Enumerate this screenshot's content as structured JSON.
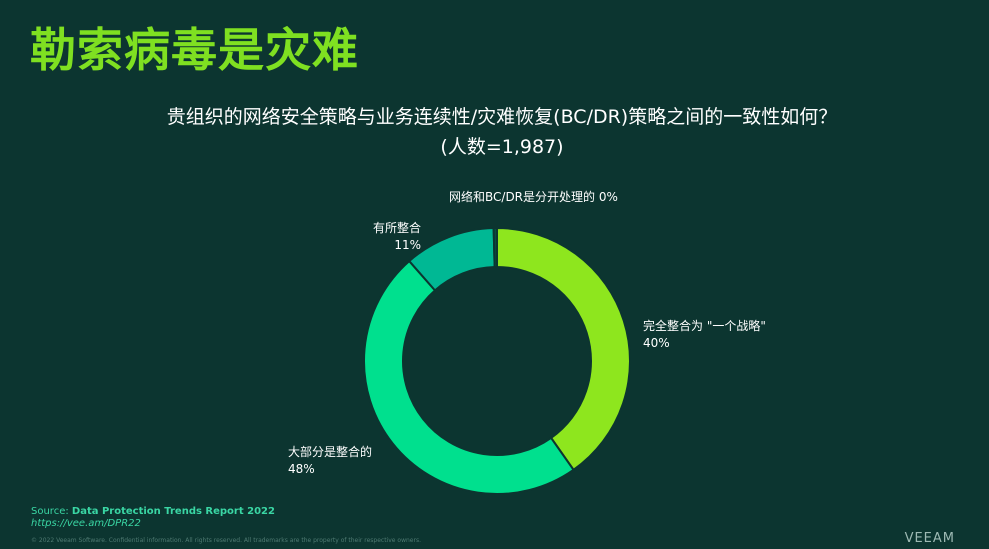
{
  "slide": {
    "title": "勒索病毒是灾难",
    "question_line1": "贵组织的网络安全策略与业务连续性/灾难恢复(BC/DR)策略之间的一致性如何？",
    "question_line2": "(人数=1,987)"
  },
  "chart_data": {
    "type": "pie",
    "style": "donut",
    "slices": [
      {
        "label": "完全整合为 \"一个战略\"",
        "value": 40,
        "value_label": "40%",
        "color": "#8ee61e"
      },
      {
        "label": "大部分是整合的",
        "value": 48,
        "value_label": "48%",
        "color": "#00e08e"
      },
      {
        "label": "有所整合",
        "value": 11,
        "value_label": "11%",
        "color": "#00b894"
      },
      {
        "label": "网络和BC/DR是分开处理的",
        "value": 0.4,
        "value_label": "0%",
        "color": "#0a4a40"
      }
    ]
  },
  "footer": {
    "source_prefix": "Source: ",
    "source_name": "Data Protection Trends Report 2022",
    "source_link": "https://vee.am/DPR22",
    "copyright": "© 2022 Veeam Software. Confidential information. All rights reserved. All trademarks are the property of their respective owners.",
    "brand": "VEEAM"
  }
}
